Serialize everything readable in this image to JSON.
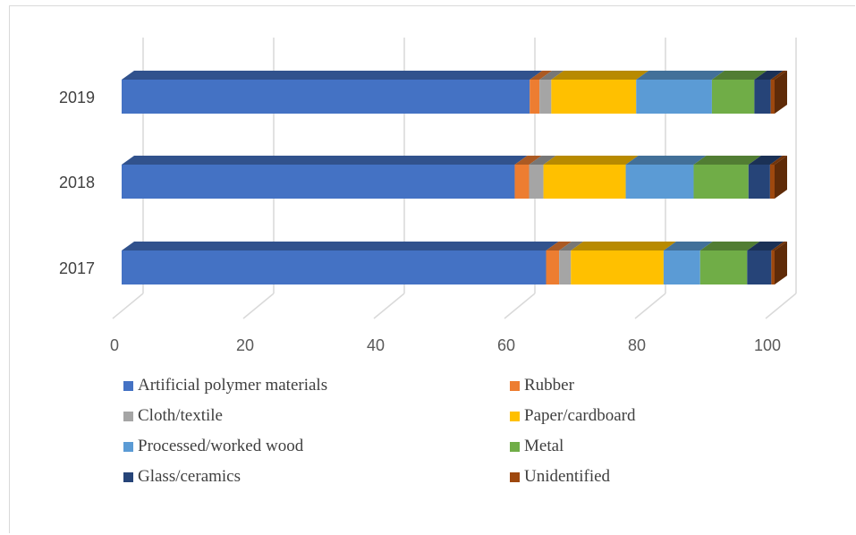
{
  "chart_data": {
    "type": "bar",
    "orientation": "horizontal",
    "stacked": true,
    "style": "3d",
    "title": "",
    "xlabel": "",
    "ylabel": "",
    "xlim": [
      0,
      100
    ],
    "x_ticks": [
      "0",
      "20",
      "40",
      "60",
      "80",
      "100"
    ],
    "grid": true,
    "legend_position": "bottom",
    "categories": [
      "2017",
      "2018",
      "2019"
    ],
    "series": [
      {
        "name": "Artificial polymer materials",
        "color": "#4472C4",
        "values": [
          65,
          60.2,
          62.5
        ]
      },
      {
        "name": "Rubber",
        "color": "#ED7D31",
        "values": [
          2,
          2.2,
          1.5
        ]
      },
      {
        "name": "Cloth/textile",
        "color": "#A5A5A5",
        "values": [
          1.8,
          2.2,
          1.8
        ]
      },
      {
        "name": "Paper/cardboard",
        "color": "#FFC000",
        "values": [
          14.2,
          12.6,
          13
        ]
      },
      {
        "name": "Processed/worked wood",
        "color": "#5B9BD5",
        "values": [
          5.6,
          10.4,
          11.6
        ]
      },
      {
        "name": "Metal",
        "color": "#70AD47",
        "values": [
          7.2,
          8.4,
          6.5
        ]
      },
      {
        "name": "Glass/ceramics",
        "color": "#264478",
        "values": [
          3.7,
          3.3,
          2.5
        ]
      },
      {
        "name": "Unidentified",
        "color": "#9E480E",
        "values": [
          0.5,
          0.7,
          0.6
        ]
      }
    ]
  }
}
